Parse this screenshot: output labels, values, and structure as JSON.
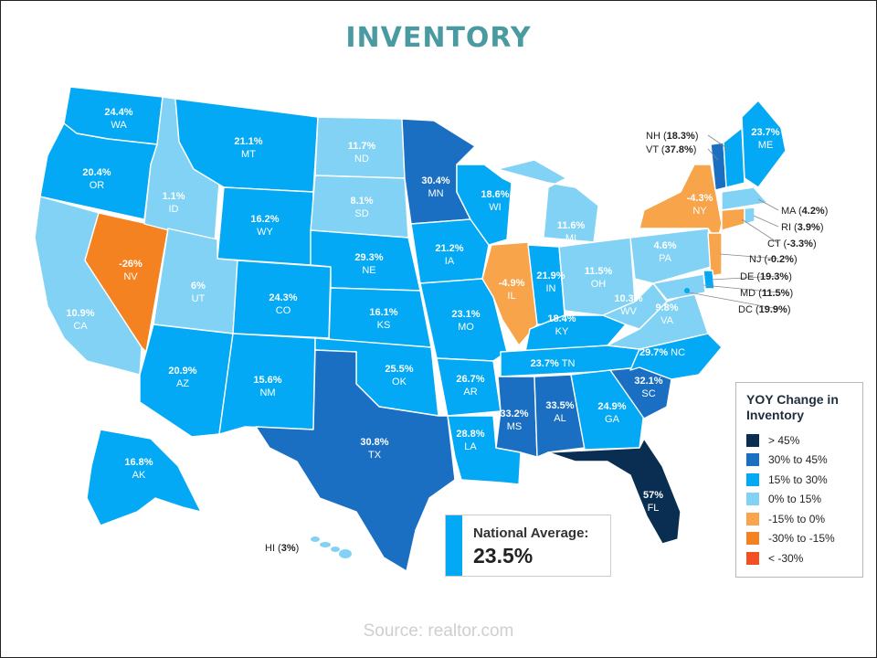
{
  "title": "INVENTORY",
  "source": "Source: realtor.com",
  "national_average": {
    "label": "National Average:",
    "value": "23.5%"
  },
  "legend": {
    "title": "YOY Change in Inventory",
    "items": [
      {
        "label": "> 45%",
        "color": "#0a2d52"
      },
      {
        "label": "30% to 45%",
        "color": "#1a6fc2"
      },
      {
        "label": "15% to 30%",
        "color": "#03a9f4"
      },
      {
        "label": "0% to 15%",
        "color": "#82d2f5"
      },
      {
        "label": "-15% to 0%",
        "color": "#f7a44a"
      },
      {
        "label": "-30% to -15%",
        "color": "#f58220"
      },
      {
        "label": "< -30%",
        "color": "#f25022"
      }
    ]
  },
  "states": {
    "WA": {
      "abbr": "WA",
      "value": "24.4%",
      "color": "#03a9f4"
    },
    "OR": {
      "abbr": "OR",
      "value": "20.4%",
      "color": "#03a9f4"
    },
    "CA": {
      "abbr": "CA",
      "value": "10.9%",
      "color": "#82d2f5"
    },
    "NV": {
      "abbr": "NV",
      "value": "-26%",
      "color": "#f58220"
    },
    "ID": {
      "abbr": "ID",
      "value": "1.1%",
      "color": "#82d2f5"
    },
    "MT": {
      "abbr": "MT",
      "value": "21.1%",
      "color": "#03a9f4"
    },
    "WY": {
      "abbr": "WY",
      "value": "16.2%",
      "color": "#03a9f4"
    },
    "UT": {
      "abbr": "UT",
      "value": "6%",
      "color": "#82d2f5"
    },
    "AZ": {
      "abbr": "AZ",
      "value": "20.9%",
      "color": "#03a9f4"
    },
    "CO": {
      "abbr": "CO",
      "value": "24.3%",
      "color": "#03a9f4"
    },
    "NM": {
      "abbr": "NM",
      "value": "15.6%",
      "color": "#03a9f4"
    },
    "ND": {
      "abbr": "ND",
      "value": "11.7%",
      "color": "#82d2f5"
    },
    "SD": {
      "abbr": "SD",
      "value": "8.1%",
      "color": "#82d2f5"
    },
    "NE": {
      "abbr": "NE",
      "value": "29.3%",
      "color": "#03a9f4"
    },
    "KS": {
      "abbr": "KS",
      "value": "16.1%",
      "color": "#03a9f4"
    },
    "OK": {
      "abbr": "OK",
      "value": "25.5%",
      "color": "#03a9f4"
    },
    "TX": {
      "abbr": "TX",
      "value": "30.8%",
      "color": "#1a6fc2"
    },
    "MN": {
      "abbr": "MN",
      "value": "30.4%",
      "color": "#1a6fc2"
    },
    "IA": {
      "abbr": "IA",
      "value": "21.2%",
      "color": "#03a9f4"
    },
    "MO": {
      "abbr": "MO",
      "value": "23.1%",
      "color": "#03a9f4"
    },
    "AR": {
      "abbr": "AR",
      "value": "26.7%",
      "color": "#03a9f4"
    },
    "LA": {
      "abbr": "LA",
      "value": "28.8%",
      "color": "#03a9f4"
    },
    "WI": {
      "abbr": "WI",
      "value": "18.6%",
      "color": "#03a9f4"
    },
    "IL": {
      "abbr": "IL",
      "value": "-4.9%",
      "color": "#f7a44a"
    },
    "MI": {
      "abbr": "MI",
      "value": "11.6%",
      "color": "#82d2f5"
    },
    "IN": {
      "abbr": "IN",
      "value": "21.9%",
      "color": "#03a9f4"
    },
    "OH": {
      "abbr": "OH",
      "value": "11.5%",
      "color": "#82d2f5"
    },
    "KY": {
      "abbr": "KY",
      "value": "18.4%",
      "color": "#03a9f4"
    },
    "TN": {
      "abbr": "TN",
      "value": "23.7%",
      "color": "#03a9f4"
    },
    "MS": {
      "abbr": "MS",
      "value": "33.2%",
      "color": "#1a6fc2"
    },
    "AL": {
      "abbr": "AL",
      "value": "33.5%",
      "color": "#1a6fc2"
    },
    "GA": {
      "abbr": "GA",
      "value": "24.9%",
      "color": "#03a9f4"
    },
    "FL": {
      "abbr": "FL",
      "value": "57%",
      "color": "#0a2d52"
    },
    "SC": {
      "abbr": "SC",
      "value": "32.1%",
      "color": "#1a6fc2"
    },
    "NC": {
      "abbr": "NC",
      "value": "29.7%",
      "color": "#03a9f4"
    },
    "VA": {
      "abbr": "VA",
      "value": "9.8%",
      "color": "#82d2f5"
    },
    "WV": {
      "abbr": "WV",
      "value": "10.3%",
      "color": "#82d2f5"
    },
    "PA": {
      "abbr": "PA",
      "value": "4.6%",
      "color": "#82d2f5"
    },
    "NY": {
      "abbr": "NY",
      "value": "-4.3%",
      "color": "#f7a44a"
    },
    "ME": {
      "abbr": "ME",
      "value": "23.7%",
      "color": "#03a9f4"
    },
    "AK": {
      "abbr": "AK",
      "value": "16.8%",
      "color": "#03a9f4"
    }
  },
  "callouts": {
    "NH": {
      "abbr": "NH",
      "value": "18.3%",
      "color": "#03a9f4"
    },
    "VT": {
      "abbr": "VT",
      "value": "37.8%",
      "color": "#1a6fc2"
    },
    "MA": {
      "abbr": "MA",
      "value": "4.2%",
      "color": "#82d2f5"
    },
    "RI": {
      "abbr": "RI",
      "value": "3.9%",
      "color": "#82d2f5"
    },
    "CT": {
      "abbr": "CT",
      "value": "-3.3%",
      "color": "#f7a44a"
    },
    "NJ": {
      "abbr": "NJ",
      "value": "-0.2%",
      "color": "#f7a44a"
    },
    "DE": {
      "abbr": "DE",
      "value": "19.3%",
      "color": "#03a9f4"
    },
    "MD": {
      "abbr": "MD",
      "value": "11.5%",
      "color": "#82d2f5"
    },
    "DC": {
      "abbr": "DC",
      "value": "19.9%",
      "color": "#03a9f4"
    },
    "HI": {
      "abbr": "HI",
      "value": "3%",
      "color": "#82d2f5"
    }
  }
}
